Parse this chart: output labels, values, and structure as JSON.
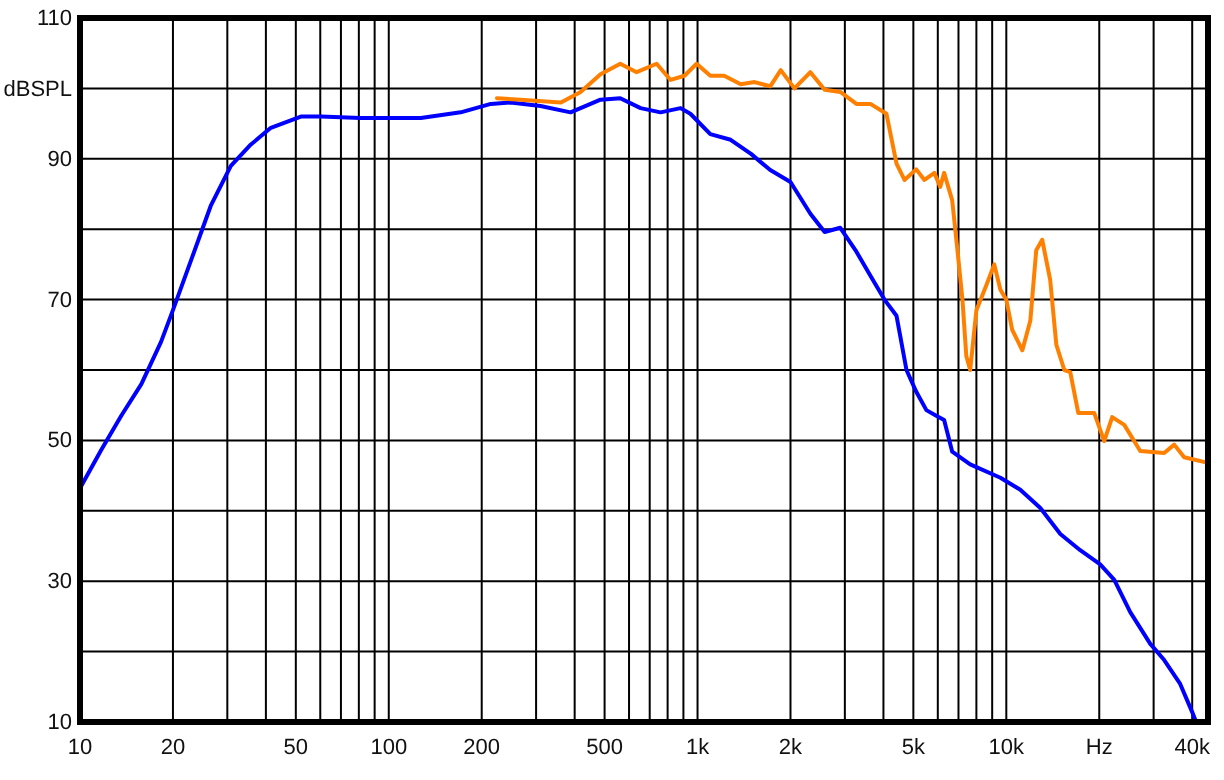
{
  "chart_data": {
    "type": "line",
    "ylabel": "dBSPL",
    "log": "x",
    "grid": true,
    "xlim": [
      10,
      45000
    ],
    "ylim": [
      10,
      110
    ],
    "xticks": [
      10,
      20,
      {
        "value": 30,
        "label": null
      },
      {
        "value": 40,
        "label": null
      },
      50,
      {
        "value": 60,
        "label": null
      },
      {
        "value": 70,
        "label": null
      },
      {
        "value": 80,
        "label": null
      },
      {
        "value": 90,
        "label": null
      },
      100,
      200,
      {
        "value": 300,
        "label": null
      },
      {
        "value": 400,
        "label": null
      },
      500,
      {
        "value": 600,
        "label": null
      },
      {
        "value": 700,
        "label": null
      },
      {
        "value": 800,
        "label": null
      },
      {
        "value": 900,
        "label": null
      },
      {
        "value": 1000,
        "label": "1k"
      },
      {
        "value": 2000,
        "label": "2k"
      },
      {
        "value": 3000,
        "label": null
      },
      {
        "value": 4000,
        "label": null
      },
      {
        "value": 5000,
        "label": "5k"
      },
      {
        "value": 6000,
        "label": null
      },
      {
        "value": 7000,
        "label": null
      },
      {
        "value": 8000,
        "label": null
      },
      {
        "value": 9000,
        "label": null
      },
      {
        "value": 10000,
        "label": "10k"
      },
      {
        "value": 20000,
        "label": "Hz"
      },
      {
        "value": 30000,
        "label": null
      },
      {
        "value": 40000,
        "label": "40k"
      }
    ],
    "yticks": [
      10,
      {
        "value": 20,
        "label": null
      },
      30,
      {
        "value": 40,
        "label": null
      },
      50,
      {
        "value": 60,
        "label": null
      },
      70,
      {
        "value": 80,
        "label": null
      },
      90,
      {
        "value": 100,
        "label": null
      },
      110
    ],
    "series": [
      {
        "color": "#0000ff",
        "x": [
          10,
          11.7,
          13.6,
          15.8,
          18.3,
          20,
          22.9,
          26.5,
          30.8,
          35.7,
          41.5,
          51.9,
          60.3,
          81,
          100,
          127,
          171,
          214,
          248,
          310,
          388,
          485,
          562,
          654,
          759,
          881,
          948,
          1100,
          1280,
          1490,
          1720,
          2000,
          2320,
          2580,
          2900,
          3270,
          3630,
          4030,
          4410,
          4750,
          5110,
          5510,
          5930,
          6290,
          6680,
          7640,
          9570,
          11100,
          12890,
          14960,
          17350,
          20140,
          22370,
          25200,
          29260,
          32460,
          36570,
          40000,
          41210
        ],
        "values": [
          43.2,
          48.6,
          53.5,
          58,
          64,
          68.5,
          75.6,
          83.3,
          89,
          92,
          94.4,
          96,
          96,
          95.8,
          95.8,
          95.8,
          96.6,
          97.8,
          98,
          97.5,
          96.6,
          98.4,
          98.6,
          97.2,
          96.6,
          97.2,
          96.4,
          93.5,
          92.7,
          90.7,
          88.4,
          86.7,
          82.2,
          79.6,
          80.2,
          76.8,
          73.4,
          70,
          67.7,
          60,
          56.9,
          54.3,
          53.5,
          52.9,
          48.4,
          46.6,
          44.7,
          43,
          40.4,
          36.7,
          34.4,
          32.4,
          30.2,
          25.6,
          21.1,
          18.8,
          15.4,
          11.4,
          10
        ]
      },
      {
        "color": "#ff8000",
        "x": [
          224,
          267,
          361,
          418,
          485,
          562,
          635,
          737,
          818,
          907,
          993,
          1100,
          1220,
          1380,
          1530,
          1720,
          1860,
          2060,
          2320,
          2580,
          2900,
          3270,
          3630,
          4090,
          4410,
          4680,
          5110,
          5430,
          5850,
          6110,
          6290,
          6680,
          7000,
          7210,
          7420,
          7640,
          8000,
          8610,
          9140,
          9570,
          10000,
          10450,
          11270,
          11960,
          12500,
          13070,
          13870,
          14520,
          15410,
          16110,
          17100,
          19260,
          20750,
          22030,
          24100,
          27150,
          32460,
          34980,
          37670,
          45000
        ],
        "values": [
          98.6,
          98.4,
          98,
          99.5,
          102,
          103.5,
          102.3,
          103.5,
          101.2,
          101.8,
          103.5,
          101.8,
          101.8,
          100.6,
          100.9,
          100.3,
          102.6,
          100,
          102.3,
          99.8,
          99.5,
          97.8,
          97.8,
          96.4,
          89.3,
          87,
          88.5,
          87,
          88,
          86,
          88,
          84.1,
          75.6,
          70,
          62,
          60,
          68.5,
          72,
          75,
          71.4,
          70,
          65.7,
          62.8,
          67,
          77,
          78.5,
          72.8,
          63.6,
          60,
          59.7,
          53.9,
          53.9,
          49.9,
          53.3,
          52.2,
          48.5,
          48.2,
          49.4,
          47.6,
          46.8
        ]
      }
    ]
  }
}
